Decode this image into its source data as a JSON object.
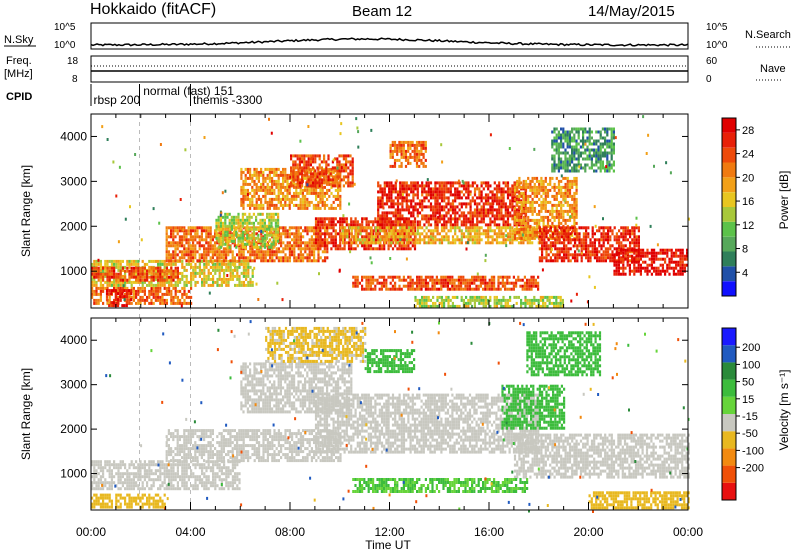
{
  "header": {
    "title": "Hokkaido (fitACF)",
    "beam": "Beam 12",
    "date": "14/May/2015"
  },
  "strip": {
    "left_top": "N.Sky",
    "left_freq_1": "Freq.",
    "left_freq_2": "[MHz]",
    "left_cpid": "CPID",
    "right_top": "N.Search",
    "right_nave": "Nave",
    "nsky_ticks": [
      "10^5",
      "10^0"
    ],
    "nsearch_ticks": [
      "10^5",
      "10^0"
    ],
    "freq_ticks": [
      "18",
      "8"
    ],
    "nave_ticks": [
      "60",
      "0"
    ],
    "cpid_labels": [
      {
        "t": "rbsp 200",
        "hour": 0.1,
        "row": 1
      },
      {
        "t": "normal (fast) 151",
        "hour": 2.1,
        "row": 0
      },
      {
        "t": "themis -3300",
        "hour": 4.1,
        "row": 1
      }
    ],
    "cpid_changes_hours": [
      1.95,
      4.0
    ]
  },
  "axes": {
    "xlabel": "Time UT",
    "ylabel": "Slant Range [km]",
    "x_ticks": [
      "00:00",
      "04:00",
      "08:00",
      "12:00",
      "16:00",
      "20:00",
      "00:00"
    ],
    "x_range_hours": [
      0,
      24
    ],
    "y_range_km": [
      180,
      4500
    ],
    "y_ticks": [
      1000,
      2000,
      3000,
      4000
    ]
  },
  "power_scale": {
    "label": "Power [dB]",
    "ticks": [
      "4",
      "8",
      "12",
      "16",
      "20",
      "24",
      "28"
    ],
    "colors": [
      "#1010ff",
      "#2050a8",
      "#2f7f5a",
      "#56a85a",
      "#5cc24a",
      "#a8c83a",
      "#e8c620",
      "#f2a018",
      "#f07a10",
      "#ee4a0a",
      "#e82008",
      "#e00000"
    ]
  },
  "velocity_scale": {
    "label": "Velocity [m s⁻¹]",
    "ticks": [
      "200",
      "100",
      "50",
      "15",
      "-15",
      "-50",
      "-100",
      "-200"
    ],
    "colors": [
      "#1a1aff",
      "#205ac0",
      "#2a8a3a",
      "#3cbc3c",
      "#66d43a",
      "#c8c8c0",
      "#e8b820",
      "#f28a10",
      "#f05008",
      "#e81010"
    ]
  },
  "chart_data": [
    {
      "type": "heatmap",
      "name": "Power",
      "xlabel": "Time UT",
      "ylabel": "Slant Range [km]",
      "colorbar_label": "Power [dB]",
      "clim": [
        0,
        30
      ],
      "x_range_hours": [
        0,
        24
      ],
      "y_range_km": [
        180,
        4500
      ],
      "regions": [
        {
          "h0": 0.0,
          "h1": 4.0,
          "r0": 300,
          "r1": 650,
          "db": 22
        },
        {
          "h0": 0.6,
          "h1": 1.6,
          "r0": 200,
          "r1": 600,
          "db": 28
        },
        {
          "h0": 0.0,
          "h1": 6.5,
          "r0": 650,
          "r1": 1250,
          "db": 16
        },
        {
          "h0": 0.0,
          "h1": 3.5,
          "r0": 800,
          "r1": 1100,
          "db": 24
        },
        {
          "h0": 3.0,
          "h1": 9.5,
          "r0": 1250,
          "r1": 2000,
          "db": 22
        },
        {
          "h0": 5.0,
          "h1": 7.5,
          "r0": 1500,
          "r1": 2300,
          "db": 14
        },
        {
          "h0": 6.0,
          "h1": 10.0,
          "r0": 2400,
          "r1": 3300,
          "db": 20
        },
        {
          "h0": 8.0,
          "h1": 10.5,
          "r0": 2900,
          "r1": 3600,
          "db": 24
        },
        {
          "h0": 9.0,
          "h1": 13.0,
          "r0": 1500,
          "r1": 2200,
          "db": 26
        },
        {
          "h0": 12.0,
          "h1": 13.5,
          "r0": 3300,
          "r1": 3900,
          "db": 22
        },
        {
          "h0": 11.5,
          "h1": 17.5,
          "r0": 2000,
          "r1": 3000,
          "db": 26
        },
        {
          "h0": 10.0,
          "h1": 18.0,
          "r0": 1600,
          "r1": 2000,
          "db": 18
        },
        {
          "h0": 10.5,
          "h1": 18.0,
          "r0": 600,
          "r1": 900,
          "db": 24
        },
        {
          "h0": 17.0,
          "h1": 19.5,
          "r0": 1700,
          "r1": 3100,
          "db": 20
        },
        {
          "h0": 18.0,
          "h1": 22.0,
          "r0": 1200,
          "r1": 2000,
          "db": 26
        },
        {
          "h0": 21.0,
          "h1": 24.0,
          "r0": 900,
          "r1": 1500,
          "db": 28
        },
        {
          "h0": 18.5,
          "h1": 21.0,
          "r0": 3200,
          "r1": 4200,
          "db": 8
        },
        {
          "h0": 13.0,
          "h1": 19.0,
          "r0": 200,
          "r1": 450,
          "db": 14
        }
      ]
    },
    {
      "type": "heatmap",
      "name": "Velocity",
      "xlabel": "Time UT",
      "ylabel": "Slant Range [km]",
      "colorbar_label": "Velocity [m s⁻¹]",
      "clim": [
        -250,
        250
      ],
      "x_range_hours": [
        0,
        24
      ],
      "y_range_km": [
        180,
        4500
      ],
      "regions": [
        {
          "h0": 0.0,
          "h1": 6.0,
          "r0": 650,
          "r1": 1300,
          "v": 0
        },
        {
          "h0": 3.0,
          "h1": 10.0,
          "r0": 1300,
          "r1": 2000,
          "v": 0
        },
        {
          "h0": 6.0,
          "h1": 10.5,
          "r0": 2400,
          "r1": 3500,
          "v": 0
        },
        {
          "h0": 9.0,
          "h1": 18.0,
          "r0": 1500,
          "r1": 2800,
          "v": 0
        },
        {
          "h0": 17.0,
          "h1": 24.0,
          "r0": 900,
          "r1": 1900,
          "v": 0
        },
        {
          "h0": 7.0,
          "h1": 11.0,
          "r0": 3500,
          "r1": 4300,
          "v": -20
        },
        {
          "h0": 11.0,
          "h1": 13.0,
          "r0": 3300,
          "r1": 3800,
          "v": 40
        },
        {
          "h0": 10.5,
          "h1": 17.5,
          "r0": 600,
          "r1": 900,
          "v": 30
        },
        {
          "h0": 16.5,
          "h1": 19.0,
          "r0": 2000,
          "r1": 3000,
          "v": 40
        },
        {
          "h0": 17.5,
          "h1": 20.5,
          "r0": 3200,
          "r1": 4200,
          "v": 40
        },
        {
          "h0": 20.0,
          "h1": 24.0,
          "r0": 250,
          "r1": 600,
          "v": -40
        },
        {
          "h0": 0.0,
          "h1": 3.0,
          "r0": 250,
          "r1": 550,
          "v": -30
        }
      ]
    }
  ]
}
